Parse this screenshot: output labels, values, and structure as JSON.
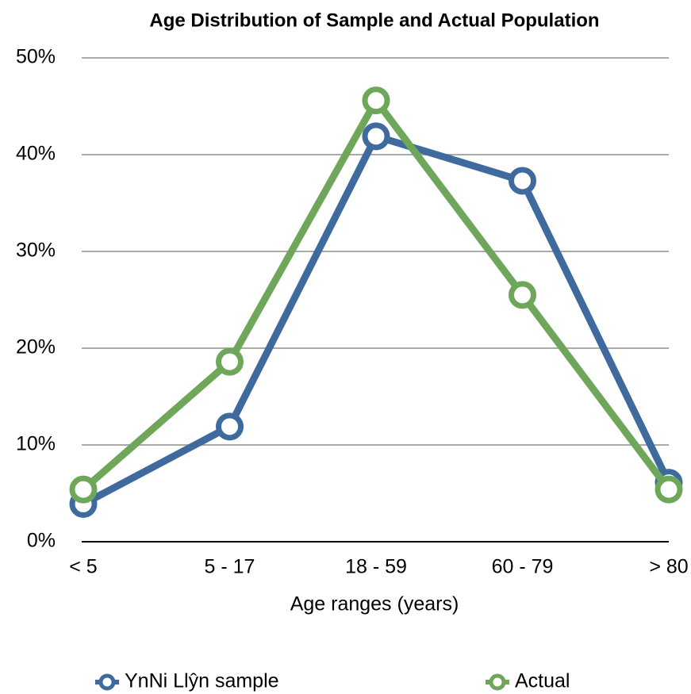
{
  "chart_data": {
    "type": "line",
    "title": "Age Distribution of Sample and Actual Population",
    "x_label": "Age ranges (years)",
    "categories": [
      "< 5",
      "5 - 17",
      "18 - 59",
      "60 - 79",
      "> 80"
    ],
    "series": [
      {
        "name": "YnNi Llŷn sample",
        "color": "#3e6a9e",
        "values": [
          3.9,
          11.9,
          41.9,
          37.3,
          6.1
        ]
      },
      {
        "name": "Actual",
        "color": "#6fa75a",
        "values": [
          5.4,
          18.6,
          45.6,
          25.5,
          5.4
        ]
      }
    ],
    "ylim": [
      0,
      50
    ],
    "yticks": [
      {
        "value": 0,
        "label": "0%"
      },
      {
        "value": 10,
        "label": "10%"
      },
      {
        "value": 20,
        "label": "20%"
      },
      {
        "value": 30,
        "label": "30%"
      },
      {
        "value": 40,
        "label": "40%"
      },
      {
        "value": 50,
        "label": "50%"
      }
    ],
    "grid": true,
    "legend": "bottom"
  }
}
